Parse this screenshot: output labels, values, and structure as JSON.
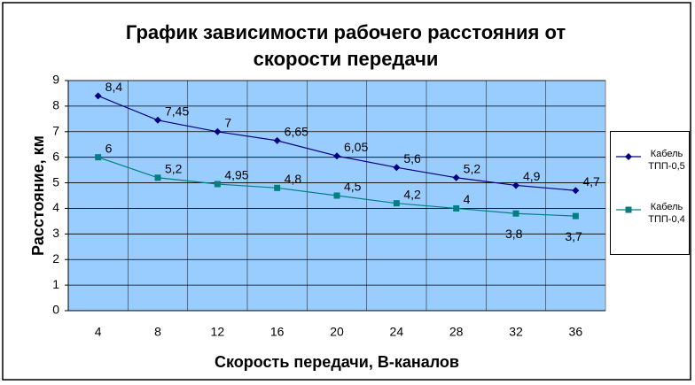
{
  "chart_data": {
    "type": "line",
    "title": "График зависимости рабочего расстояния от скорости передачи",
    "x_label": "Скорость передачи, В-каналов",
    "y_label": "Расстояние, км",
    "categories": [
      "4",
      "8",
      "12",
      "16",
      "20",
      "24",
      "28",
      "32",
      "36"
    ],
    "series": [
      {
        "name": "Кабель ТПП-0,5",
        "color": "#000080",
        "marker": "diamond",
        "values": [
          8.4,
          7.45,
          7,
          6.65,
          6.05,
          5.6,
          5.2,
          4.9,
          4.7
        ],
        "value_labels": [
          "8,4",
          "7,45",
          "7",
          "6,65",
          "6,05",
          "5,6",
          "5,2",
          "4,9",
          "4,7"
        ]
      },
      {
        "name": "Кабель ТПП-0,4",
        "color": "#008080",
        "marker": "square",
        "values": [
          6,
          5.2,
          4.95,
          4.8,
          4.5,
          4.2,
          4,
          3.8,
          3.7
        ],
        "value_labels": [
          "6",
          "5,2",
          "4,95",
          "4,8",
          "4,5",
          "4,2",
          "4",
          "3,8",
          "3,7"
        ]
      }
    ],
    "ylim": [
      0,
      9
    ],
    "yticks": [
      0,
      1,
      2,
      3,
      4,
      5,
      6,
      7,
      8,
      9
    ],
    "grid": true,
    "plot_background": "#99ccff",
    "legend": "right"
  }
}
